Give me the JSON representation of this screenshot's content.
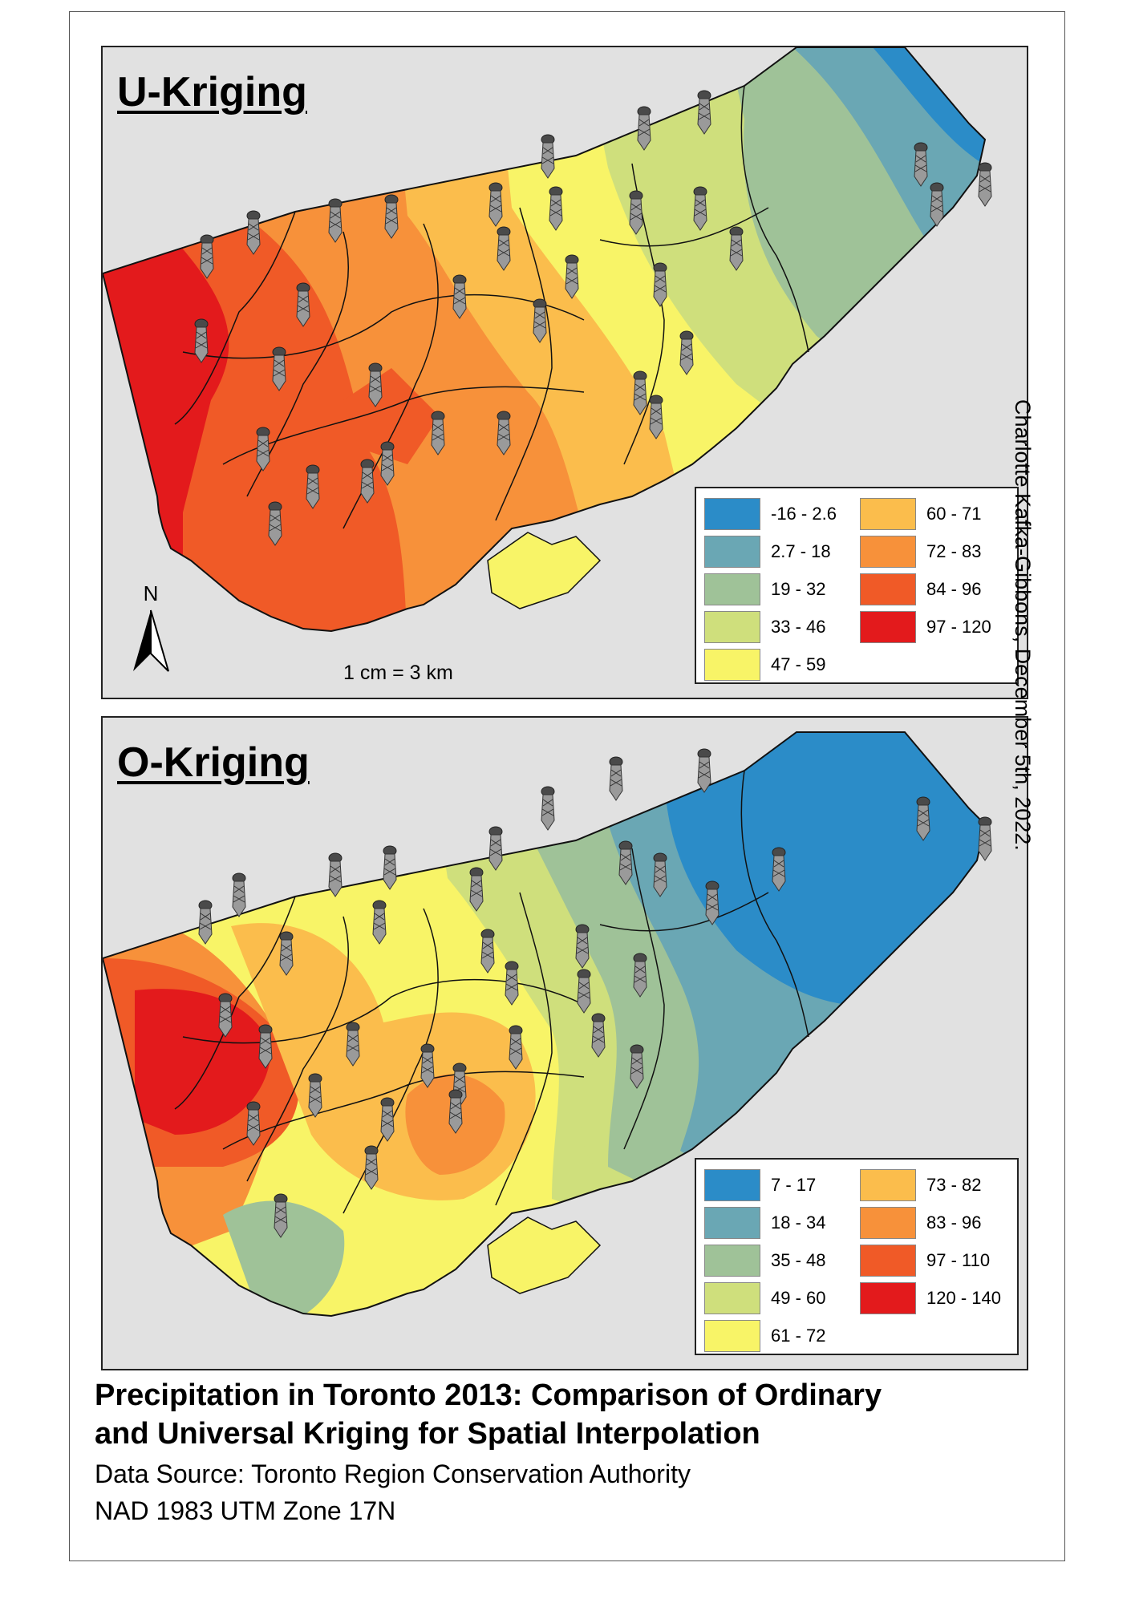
{
  "maps": [
    {
      "title": "U-Kriging",
      "legend": [
        {
          "label": "-16 - 2.6",
          "color": "#2b8cc8"
        },
        {
          "label": "60 - 71",
          "color": "#fbbd4c"
        },
        {
          "label": "2.7 - 18",
          "color": "#6aa7b4"
        },
        {
          "label": "72 - 83",
          "color": "#f7913a"
        },
        {
          "label": "19 - 32",
          "color": "#9fc298"
        },
        {
          "label": "84 - 96",
          "color": "#f05a27"
        },
        {
          "label": "33 - 46",
          "color": "#cfdf7c"
        },
        {
          "label": "97 - 120",
          "color": "#e31a1c"
        },
        {
          "label": "47 - 59",
          "color": "#f8f467"
        }
      ],
      "north_label": "N",
      "scale_text": "1 cm = 3 km"
    },
    {
      "title": "O-Kriging",
      "legend": [
        {
          "label": "7 - 17",
          "color": "#2b8cc8"
        },
        {
          "label": "73 - 82",
          "color": "#fbbd4c"
        },
        {
          "label": "18 - 34",
          "color": "#6aa7b4"
        },
        {
          "label": "83 - 96",
          "color": "#f7913a"
        },
        {
          "label": "35 - 48",
          "color": "#9fc298"
        },
        {
          "label": "97 - 110",
          "color": "#f05a27"
        },
        {
          "label": "49 - 60",
          "color": "#cfdf7c"
        },
        {
          "label": "120 - 140",
          "color": "#e31a1c"
        },
        {
          "label": "61 - 72",
          "color": "#f8f467"
        }
      ]
    }
  ],
  "author_credit": "Charlotte Kafka-Gibbons, December 5th, 2022.",
  "figure_title_line1": "Precipitation in Toronto 2013: Comparison of Ordinary",
  "figure_title_line2": "and Universal Kriging for Spatial Interpolation",
  "data_source": "Data Source: Toronto Region Conservation Authority",
  "projection": "NAD 1983 UTM Zone 17N",
  "icons": {
    "station": "weather-station-tower-icon",
    "north": "north-arrow-icon"
  }
}
